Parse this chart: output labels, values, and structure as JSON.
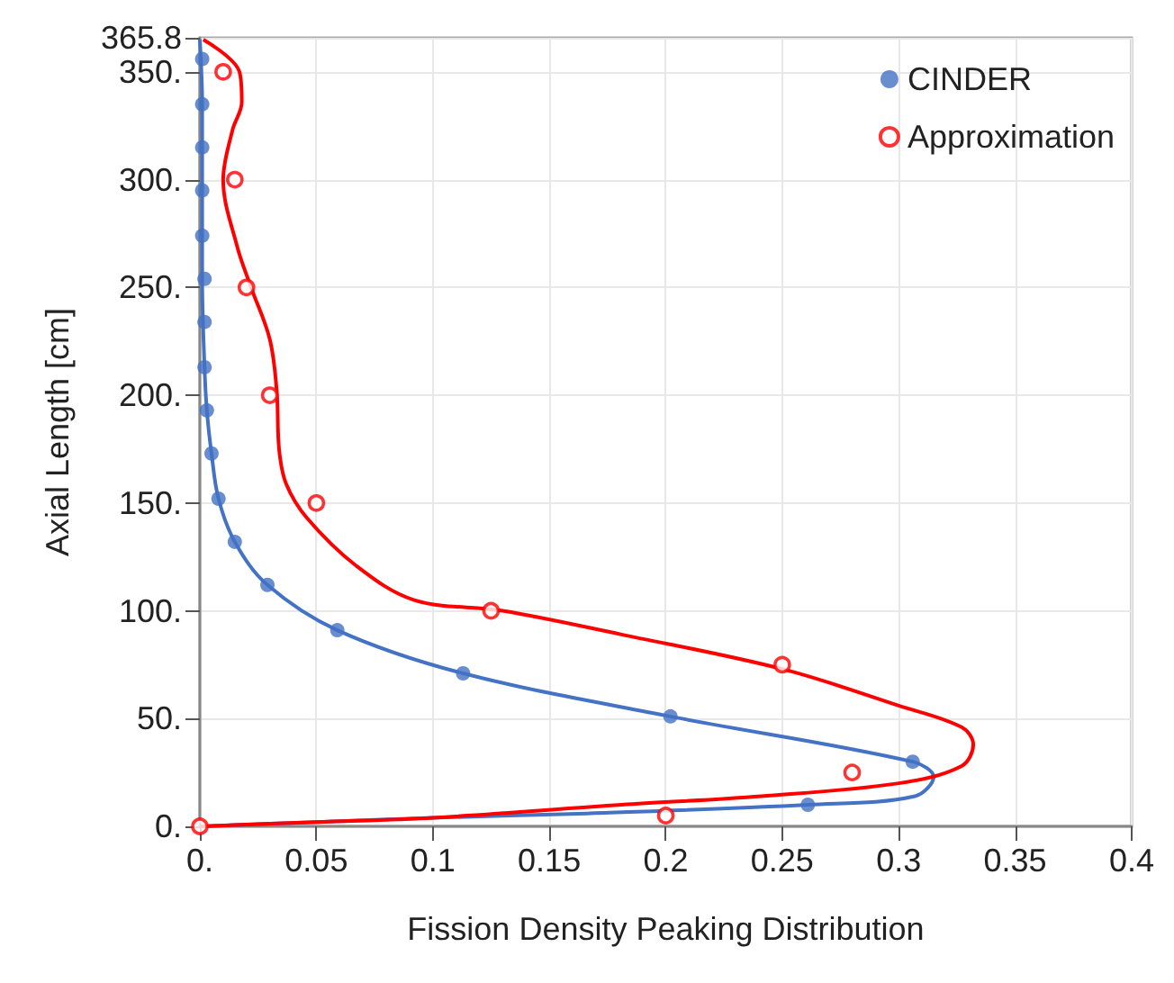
{
  "chart_data": {
    "type": "scatter",
    "xlabel": "Fission Density Peaking Distribution",
    "ylabel": "Axial Length [cm]",
    "xlim": [
      0,
      0.4
    ],
    "xticks": [
      {
        "value": 0,
        "label": "0."
      },
      0.05,
      0.1,
      0.15,
      0.2,
      0.25,
      0.3,
      0.35,
      0.4
    ],
    "ylim": [
      0,
      365.8
    ],
    "yticks": [
      {
        "value": 0,
        "label": "0."
      },
      {
        "value": 50,
        "label": "50."
      },
      {
        "value": 100,
        "label": "100."
      },
      {
        "value": 150,
        "label": "150."
      },
      {
        "value": 200,
        "label": "200."
      },
      {
        "value": 250,
        "label": "250."
      },
      {
        "value": 300,
        "label": "300."
      },
      {
        "value": 350,
        "label": "350."
      },
      365.8
    ],
    "grid": true,
    "legend": "top right",
    "marker": "circle",
    "series": [
      {
        "name": "CINDER",
        "color": "#4472c4",
        "x": [
          0.001,
          0.001,
          0.001,
          0.001,
          0.001,
          0.002,
          0.002,
          0.002,
          0.003,
          0.005,
          0.008,
          0.015,
          0.029,
          0.059,
          0.113,
          0.202,
          0.306,
          0.261
        ],
        "values": [
          356,
          335,
          315,
          295,
          274,
          254,
          234,
          213,
          193,
          173,
          152,
          132,
          112,
          91,
          71,
          51,
          30,
          10
        ]
      },
      {
        "type": "line",
        "color": "#4472c4",
        "marker": "none",
        "line_style": "solid",
        "x": [
          0,
          0.001,
          0.001,
          0.001,
          0.002,
          0.003,
          0.005,
          0.008,
          0.015,
          0.029,
          0.059,
          0.113,
          0.202,
          0.306,
          0.315,
          0.307,
          0.261,
          0.166,
          0.1,
          0.05,
          0
        ],
        "values": [
          365,
          335,
          295,
          254,
          213,
          193,
          173,
          152,
          132,
          112,
          91,
          71,
          51,
          30,
          23,
          14,
          10,
          6,
          4,
          2,
          0
        ]
      },
      {
        "name": "Approximation",
        "color": "#ff0000",
        "x": [
          0,
          0.2,
          0.28,
          0.25,
          0.125,
          0.05,
          0.03,
          0.02,
          0.015,
          0.01
        ],
        "values": [
          0,
          5,
          25,
          75,
          100,
          150,
          200,
          250,
          300,
          350
        ]
      },
      {
        "type": "line",
        "color": "#ff0000",
        "marker": "none",
        "line_style": "solid",
        "x": [
          0.0015,
          0.017,
          0.018,
          0.014,
          0.01,
          0.016,
          0.022,
          0.03,
          0.033,
          0.034,
          0.037,
          0.046,
          0.067,
          0.092,
          0.13,
          0.181,
          0.25,
          0.3,
          0.327,
          0.332,
          0.327,
          0.3,
          0.241,
          0.181,
          0.1,
          0.05,
          0
        ],
        "values": [
          365,
          350,
          336,
          323,
          300,
          269,
          250,
          226,
          202,
          175,
          159,
          143,
          121,
          105,
          100,
          89,
          73,
          56,
          46,
          38,
          28,
          20,
          14,
          10,
          4,
          2,
          0
        ]
      }
    ]
  }
}
